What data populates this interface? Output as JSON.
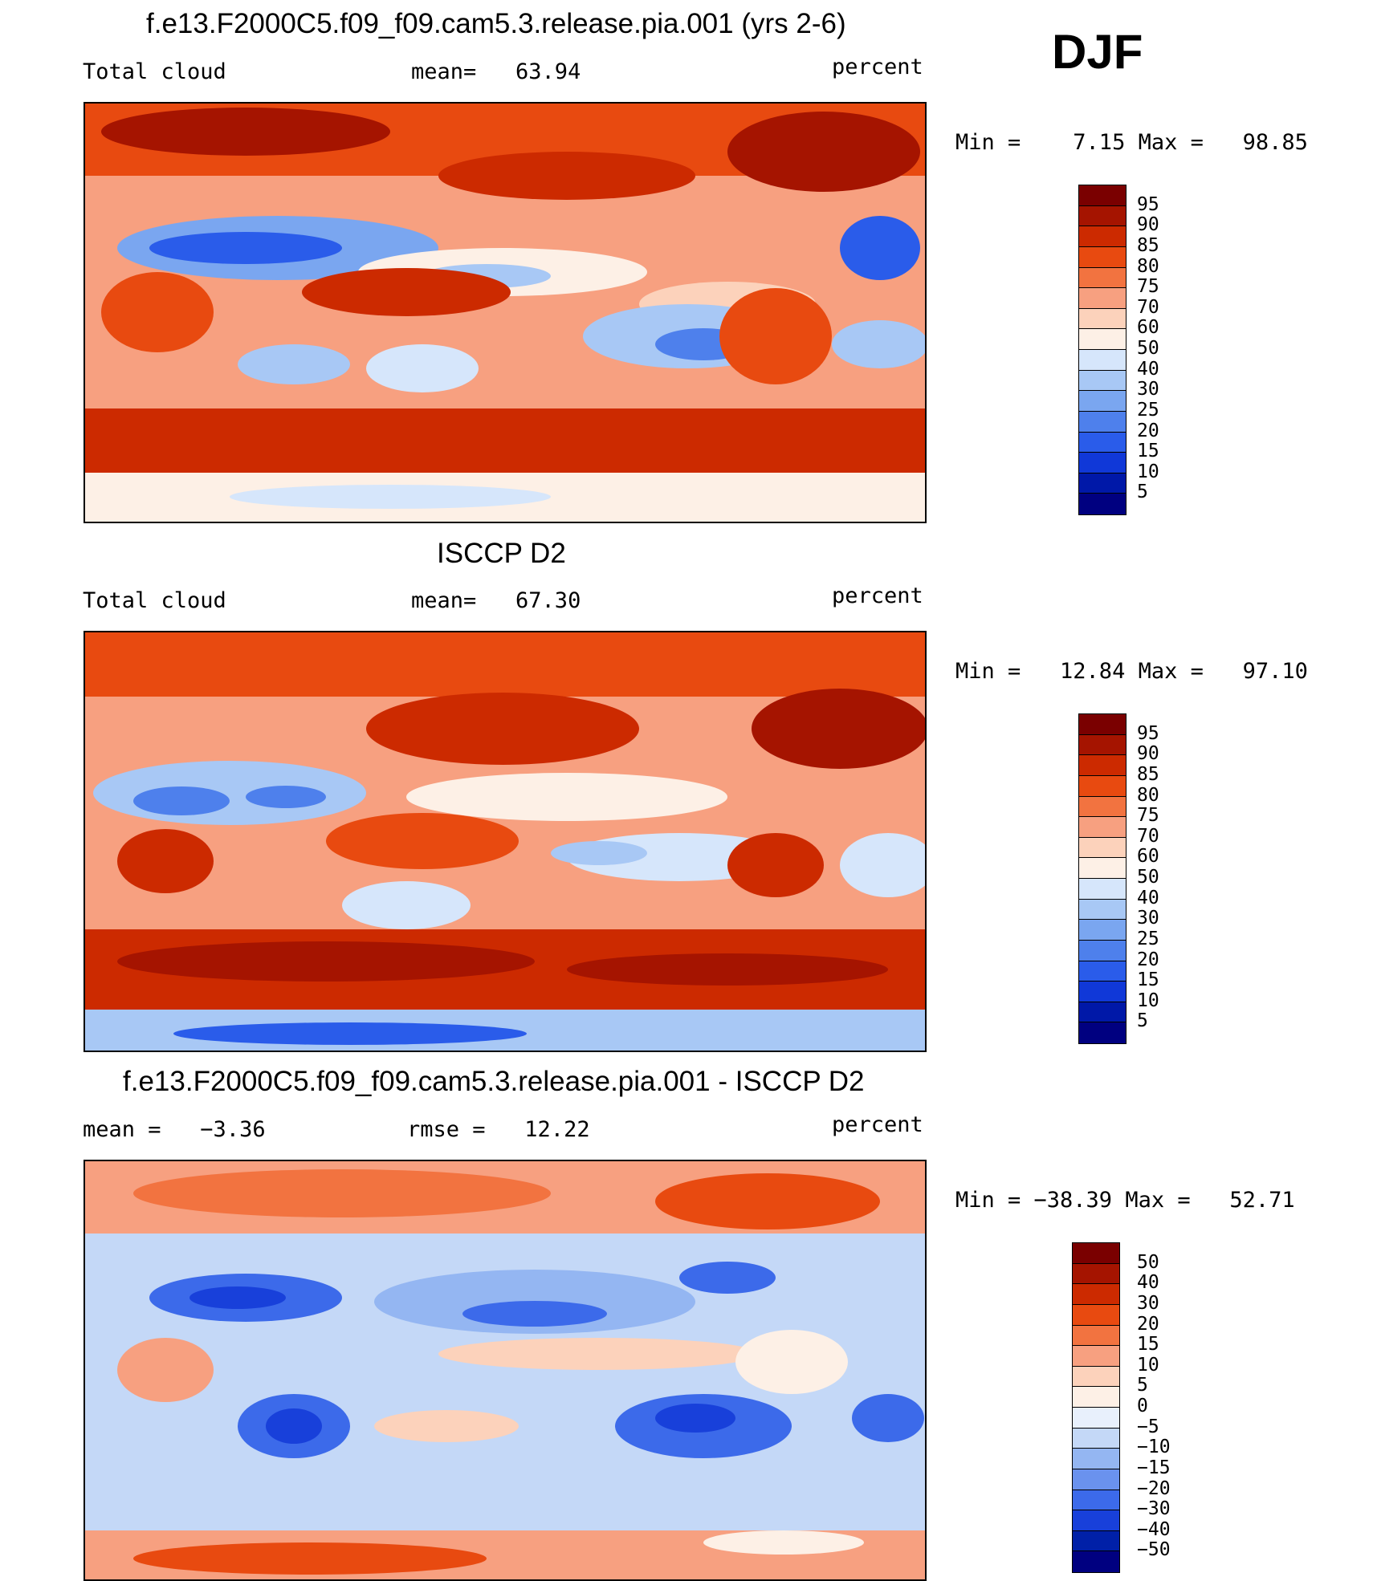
{
  "season": "DJF",
  "panels": [
    {
      "title": "f.e13.F2000C5.f09_f09.cam5.3.release.pia.001 (yrs 2-6)",
      "left_label": "Total cloud",
      "stat1": "mean=   63.94",
      "stat2": "",
      "units": "percent",
      "minmax": "Min =    7.15 Max =   98.85",
      "colorbar": {
        "labels": [
          "95",
          "90",
          "85",
          "80",
          "75",
          "70",
          "60",
          "50",
          "40",
          "30",
          "25",
          "20",
          "15",
          "10",
          "5"
        ],
        "colors": [
          "#7a0000",
          "#a51400",
          "#cc2a00",
          "#e84a10",
          "#f27340",
          "#f7a080",
          "#fcd2bb",
          "#fdf0e6",
          "#d6e6fb",
          "#a8c8f5",
          "#7aa6f0",
          "#4e80ec",
          "#2a5cea",
          "#1038d8",
          "#0018a8",
          "#000080"
        ]
      }
    },
    {
      "title": "ISCCP D2",
      "left_label": "Total cloud",
      "stat1": "mean=   67.30",
      "stat2": "",
      "units": "percent",
      "minmax": "Min =   12.84 Max =   97.10",
      "colorbar": {
        "labels": [
          "95",
          "90",
          "85",
          "80",
          "75",
          "70",
          "60",
          "50",
          "40",
          "30",
          "25",
          "20",
          "15",
          "10",
          "5"
        ],
        "colors": [
          "#7a0000",
          "#a51400",
          "#cc2a00",
          "#e84a10",
          "#f27340",
          "#f7a080",
          "#fcd2bb",
          "#fdf0e6",
          "#d6e6fb",
          "#a8c8f5",
          "#7aa6f0",
          "#4e80ec",
          "#2a5cea",
          "#1038d8",
          "#0018a8",
          "#000080"
        ]
      }
    },
    {
      "title": "f.e13.F2000C5.f09_f09.cam5.3.release.pia.001 - ISCCP D2",
      "left_label": "mean =   −3.36",
      "stat1": "rmse =   12.22",
      "stat2": "",
      "units": "percent",
      "minmax": "Min = −38.39 Max =   52.71",
      "colorbar": {
        "labels": [
          "50",
          "40",
          "30",
          "20",
          "15",
          "10",
          "5",
          "0",
          "−5",
          "−10",
          "−15",
          "−20",
          "−30",
          "−40",
          "−50"
        ],
        "colors": [
          "#7a0000",
          "#a51400",
          "#cc2a00",
          "#e84a10",
          "#f27340",
          "#f7a080",
          "#fcd2bb",
          "#fdf0e6",
          "#e8f0fc",
          "#c4d8f7",
          "#94b6f2",
          "#6a92ee",
          "#3c6aea",
          "#1840da",
          "#0020a8",
          "#000080"
        ]
      }
    }
  ]
}
